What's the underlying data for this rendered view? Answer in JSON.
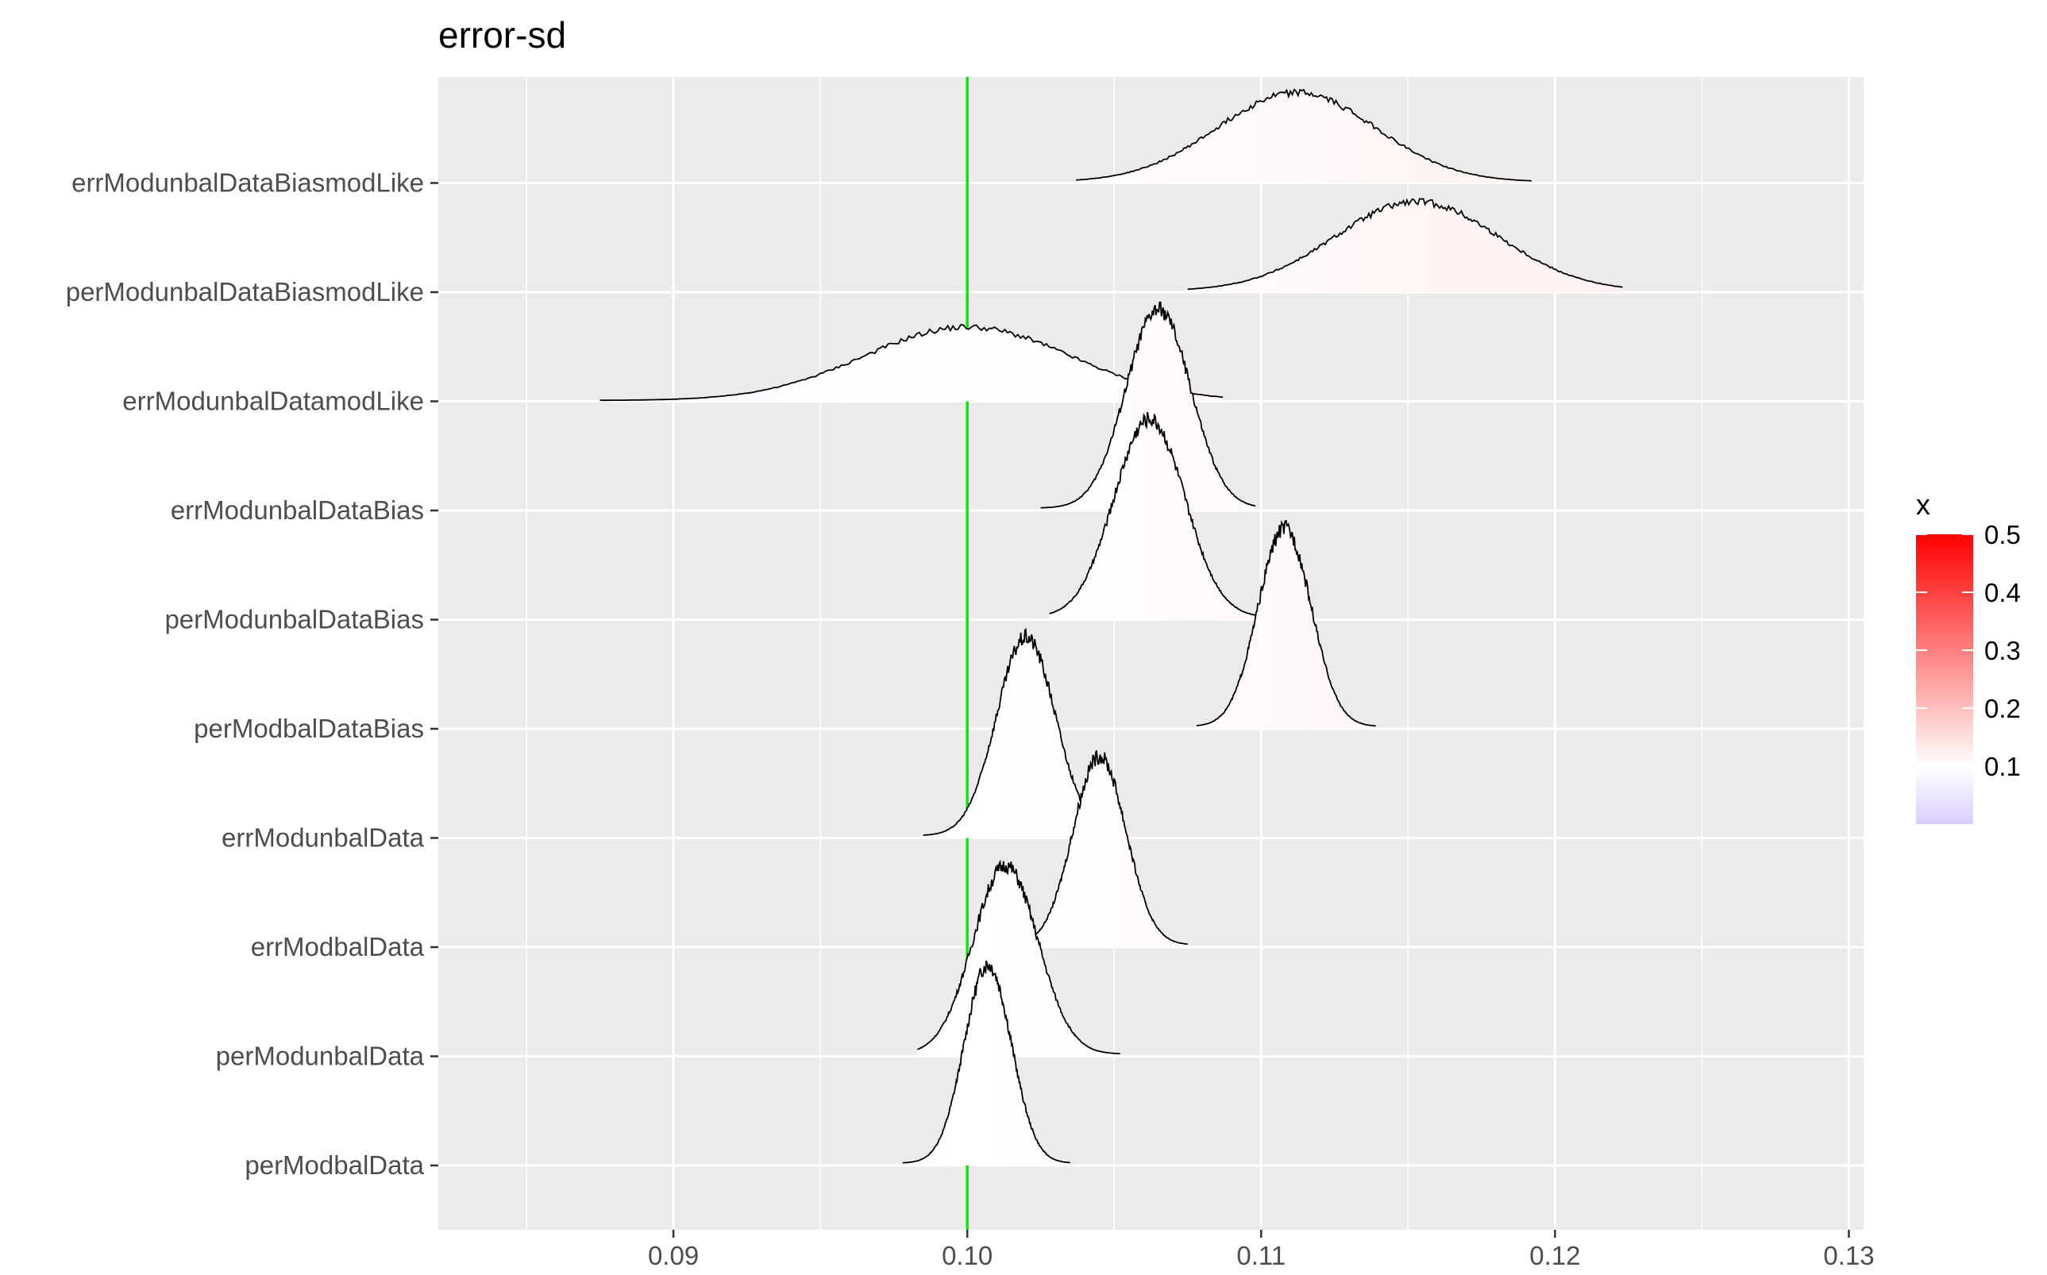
{
  "chart_data": {
    "type": "ridgeline",
    "title": "error-sd",
    "xlabel": "",
    "ylabel": "",
    "xlim": [
      0.082,
      0.1305
    ],
    "x_ticks": [
      0.09,
      0.1,
      0.11,
      0.12,
      0.13
    ],
    "x_tick_labels": [
      "0.09",
      "0.10",
      "0.11",
      "0.12",
      "0.13"
    ],
    "grid": true,
    "reference_line": {
      "x": 0.1,
      "color": "#00ee00"
    },
    "legend": {
      "title": "x",
      "position": "right",
      "ticks": [
        0.1,
        0.2,
        0.3,
        0.4,
        0.5
      ],
      "tick_labels": [
        "0.1",
        "0.2",
        "0.3",
        "0.4",
        "0.5"
      ],
      "range": [
        0.0,
        0.5
      ],
      "colors": {
        "low": "#d9ccff",
        "mid": "#ffffff",
        "mid_value": 0.1,
        "high": "#ff0000"
      }
    },
    "series": [
      {
        "name": "perModbalData",
        "peak_x": 0.1007,
        "sd": 0.0008,
        "min": 0.0978,
        "max": 0.1035,
        "height": 1.0
      },
      {
        "name": "perModunbalData",
        "peak_x": 0.1013,
        "sd": 0.0011,
        "min": 0.0983,
        "max": 0.1052,
        "height": 0.95
      },
      {
        "name": "errModbalData",
        "peak_x": 0.1045,
        "sd": 0.0009,
        "min": 0.1015,
        "max": 0.1075,
        "height": 0.95
      },
      {
        "name": "errModunbalData",
        "peak_x": 0.102,
        "sd": 0.001,
        "min": 0.0985,
        "max": 0.1052,
        "height": 1.0
      },
      {
        "name": "perModbalDataBias",
        "peak_x": 0.1108,
        "sd": 0.0009,
        "min": 0.1078,
        "max": 0.1139,
        "height": 1.0
      },
      {
        "name": "perModunbalDataBias",
        "peak_x": 0.1062,
        "sd": 0.0012,
        "min": 0.1028,
        "max": 0.11,
        "height": 1.0
      },
      {
        "name": "errModunbalDataBias",
        "peak_x": 0.1065,
        "sd": 0.0011,
        "min": 0.1025,
        "max": 0.1098,
        "height": 1.0
      },
      {
        "name": "errModunbalDatamodLike",
        "peak_x": 0.1,
        "sd": 0.0035,
        "min": 0.0875,
        "max": 0.1087,
        "height": 0.37
      },
      {
        "name": "perModunbalDataBiasmodLike",
        "peak_x": 0.1153,
        "sd": 0.0028,
        "min": 0.1075,
        "max": 0.1223,
        "height": 0.45
      },
      {
        "name": "errModunbalDataBiasmodLike",
        "peak_x": 0.1112,
        "sd": 0.0027,
        "min": 0.1037,
        "max": 0.1192,
        "height": 0.45
      }
    ]
  }
}
